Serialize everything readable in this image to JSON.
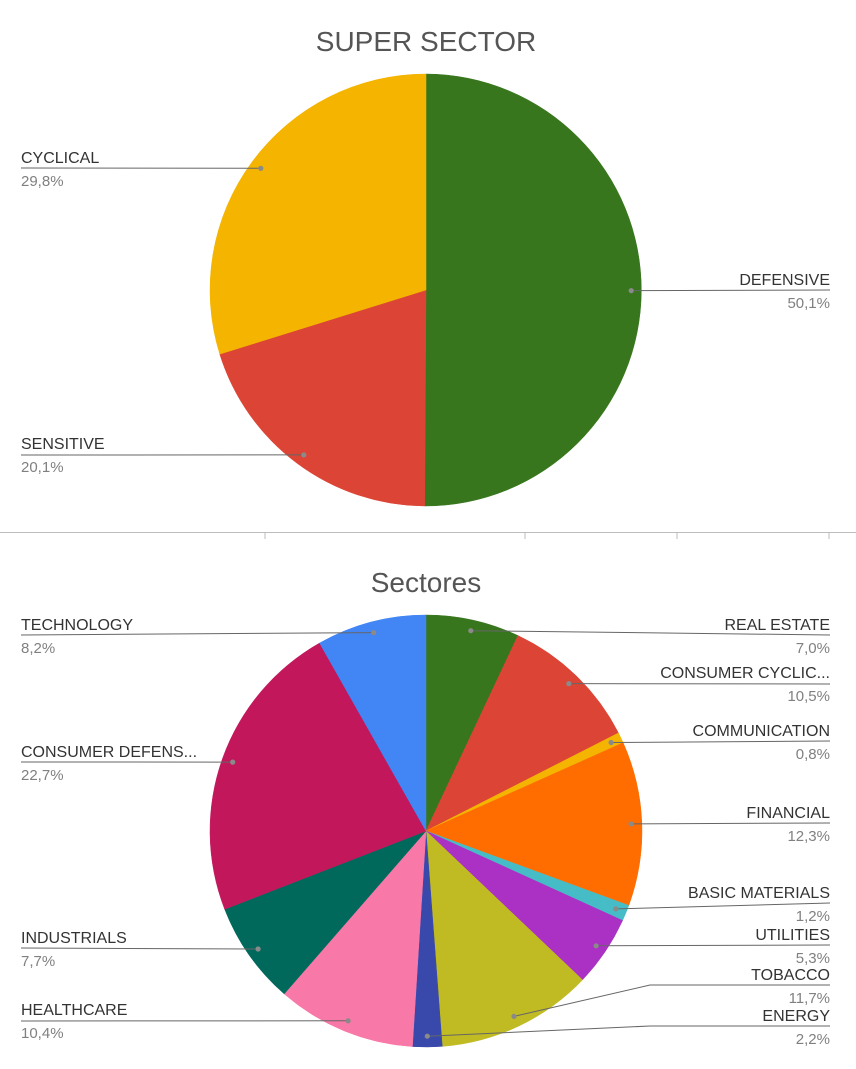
{
  "chart_data": [
    {
      "type": "pie",
      "title": "SUPER SECTOR",
      "slices": [
        {
          "label": "DEFENSIVE",
          "value": 50.1,
          "pct_label": "50,1%",
          "color": "#38761d"
        },
        {
          "label": "SENSITIVE",
          "value": 20.1,
          "pct_label": "20,1%",
          "color": "#dc4535"
        },
        {
          "label": "CYCLICAL",
          "value": 29.8,
          "pct_label": "29,8%",
          "color": "#f4b400"
        }
      ]
    },
    {
      "type": "pie",
      "title": "Sectores",
      "slices": [
        {
          "label": "REAL ESTATE",
          "value": 7.0,
          "pct_label": "7,0%",
          "color": "#38761d"
        },
        {
          "label": "CONSUMER CYCLIC...",
          "value": 10.5,
          "pct_label": "10,5%",
          "color": "#dc4535"
        },
        {
          "label": "COMMUNICATION",
          "value": 0.8,
          "pct_label": "0,8%",
          "color": "#f4b400"
        },
        {
          "label": "FINANCIAL",
          "value": 12.3,
          "pct_label": "12,3%",
          "color": "#ff6d00"
        },
        {
          "label": "BASIC MATERIALS",
          "value": 1.2,
          "pct_label": "1,2%",
          "color": "#46bdc6"
        },
        {
          "label": "UTILITIES",
          "value": 5.3,
          "pct_label": "5,3%",
          "color": "#ab30c4"
        },
        {
          "label": "TOBACCO",
          "value": 11.7,
          "pct_label": "11,7%",
          "color": "#c0bb22"
        },
        {
          "label": "ENERGY",
          "value": 2.2,
          "pct_label": "2,2%",
          "color": "#3949ab"
        },
        {
          "label": "HEALTHCARE",
          "value": 10.4,
          "pct_label": "10,4%",
          "color": "#f878a8"
        },
        {
          "label": "INDUSTRIALS",
          "value": 7.7,
          "pct_label": "7,7%",
          "color": "#00695c"
        },
        {
          "label": "CONSUMER DEFENS...",
          "value": 22.7,
          "pct_label": "22,7%",
          "color": "#c2185b"
        },
        {
          "label": "TECHNOLOGY",
          "value": 8.2,
          "pct_label": "8,2%",
          "color": "#4285f4"
        }
      ]
    }
  ]
}
